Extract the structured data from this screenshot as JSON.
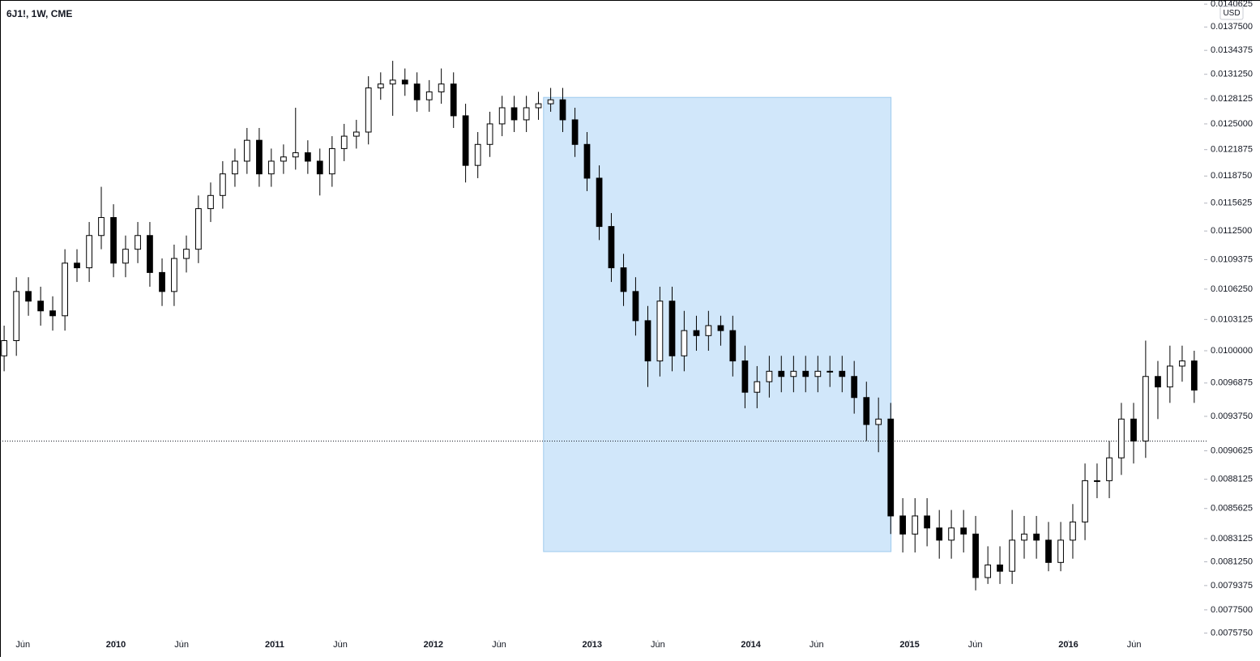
{
  "chart_data": {
    "type": "candlestick",
    "title": "6J1!, 1W, CME",
    "currency": "USD",
    "log_scale": true,
    "up_color": "#ffffff",
    "down_color": "#000000",
    "wick_color": "#000000",
    "highlight": {
      "x": [
        2012.694,
        2014.883
      ],
      "y": [
        0.008207,
        0.01283
      ],
      "color": "#d1e7fa",
      "border_color": "#9fcbee"
    },
    "price_line": 0.00915,
    "xlim": [
      2009.27,
      2016.85
    ],
    "ylim": [
      0.007524,
      0.01412
    ],
    "xticks": [
      {
        "value": 2009.414,
        "label": "Jun"
      },
      2010,
      {
        "value": 2010.414,
        "label": "Jun"
      },
      2011,
      {
        "value": 2011.414,
        "label": "Jun"
      },
      2012,
      {
        "value": 2012.414,
        "label": "Jun"
      },
      2013,
      {
        "value": 2013.414,
        "label": "Jun"
      },
      2014,
      {
        "value": 2014.414,
        "label": "Jun"
      },
      2015,
      {
        "value": 2015.414,
        "label": "Jun"
      },
      2016,
      {
        "value": 2016.414,
        "label": "Jun"
      }
    ],
    "yticks": [
      0.0140625,
      {
        "value": 0.01375,
        "label": "0.0137500"
      },
      0.0134375,
      {
        "value": 0.013125,
        "label": "0.0131250"
      },
      0.0128125,
      {
        "value": 0.0125,
        "label": "0.0125000"
      },
      0.0121875,
      {
        "value": 0.011875,
        "label": "0.0118750"
      },
      0.0115625,
      {
        "value": 0.01125,
        "label": "0.0112500"
      },
      0.0109375,
      {
        "value": 0.010625,
        "label": "0.0106250"
      },
      0.0103125,
      {
        "value": 0.01,
        "label": "0.0100000"
      },
      0.0096875,
      {
        "value": 0.009375,
        "label": "0.0093750"
      },
      0.0090625,
      0.0088125,
      0.0085625,
      0.0083125,
      {
        "value": 0.008125,
        "label": "0.0081250"
      },
      {
        "value": 0.0079375,
        "label": "0.0079375"
      },
      {
        "value": 0.00775,
        "label": "0.0077500"
      },
      {
        "value": 0.007575,
        "label": "0.0075750"
      }
    ],
    "x": [
      2009.296,
      2009.373,
      2009.449,
      2009.526,
      2009.602,
      2009.679,
      2009.755,
      2009.832,
      2009.908,
      2009.985,
      2010.061,
      2010.138,
      2010.214,
      2010.291,
      2010.367,
      2010.444,
      2010.52,
      2010.597,
      2010.673,
      2010.75,
      2010.826,
      2010.903,
      2010.979,
      2011.056,
      2011.132,
      2011.209,
      2011.285,
      2011.362,
      2011.438,
      2011.515,
      2011.591,
      2011.668,
      2011.744,
      2011.821,
      2011.897,
      2011.974,
      2012.05,
      2012.127,
      2012.203,
      2012.28,
      2012.356,
      2012.433,
      2012.509,
      2012.586,
      2012.662,
      2012.739,
      2012.815,
      2012.892,
      2012.968,
      2013.045,
      2013.121,
      2013.198,
      2013.274,
      2013.351,
      2013.427,
      2013.504,
      2013.58,
      2013.657,
      2013.733,
      2013.81,
      2013.886,
      2013.963,
      2014.039,
      2014.116,
      2014.192,
      2014.269,
      2014.345,
      2014.422,
      2014.498,
      2014.575,
      2014.651,
      2014.728,
      2014.804,
      2014.881,
      2014.957,
      2015.034,
      2015.11,
      2015.187,
      2015.263,
      2015.34,
      2015.416,
      2015.493,
      2015.569,
      2015.646,
      2015.722,
      2015.799,
      2015.875,
      2015.952,
      2016.028,
      2016.105,
      2016.181,
      2016.258,
      2016.334,
      2016.411,
      2016.487,
      2016.564,
      2016.64,
      2016.717,
      2016.793
    ],
    "open": [
      0.00995,
      0.0101,
      0.0106,
      0.0105,
      0.0104,
      0.01035,
      0.0109,
      0.01085,
      0.0112,
      0.0114,
      0.0109,
      0.01105,
      0.0112,
      0.0108,
      0.0106,
      0.01095,
      0.01105,
      0.0115,
      0.01165,
      0.0119,
      0.01205,
      0.0123,
      0.0119,
      0.01205,
      0.0121,
      0.01215,
      0.01205,
      0.0119,
      0.0122,
      0.01235,
      0.0124,
      0.01295,
      0.013,
      0.01305,
      0.013,
      0.0128,
      0.0129,
      0.013,
      0.0126,
      0.012,
      0.01225,
      0.0125,
      0.0127,
      0.01255,
      0.0127,
      0.01275,
      0.0128,
      0.01255,
      0.01225,
      0.01185,
      0.0113,
      0.01085,
      0.0106,
      0.0103,
      0.0099,
      0.0105,
      0.00995,
      0.0102,
      0.01015,
      0.01025,
      0.0102,
      0.0099,
      0.0096,
      0.0097,
      0.0098,
      0.00975,
      0.0098,
      0.00975,
      0.0098,
      0.0098,
      0.00975,
      0.00955,
      0.0093,
      0.00935,
      0.0085,
      0.00835,
      0.0085,
      0.0084,
      0.0083,
      0.0084,
      0.00835,
      0.008,
      0.0081,
      0.00805,
      0.0083,
      0.00835,
      0.0083,
      0.00812,
      0.0083,
      0.00845,
      0.0088,
      0.0088,
      0.009,
      0.00935,
      0.00915,
      0.00975,
      0.00965,
      0.00985,
      0.0099
    ],
    "high": [
      0.01025,
      0.01075,
      0.01075,
      0.01065,
      0.01055,
      0.01105,
      0.01105,
      0.01135,
      0.01175,
      0.01155,
      0.0112,
      0.01135,
      0.01135,
      0.01095,
      0.0111,
      0.0112,
      0.01165,
      0.0118,
      0.01205,
      0.0122,
      0.01245,
      0.01245,
      0.0122,
      0.01225,
      0.0127,
      0.0123,
      0.0122,
      0.01235,
      0.0125,
      0.01255,
      0.0131,
      0.01315,
      0.0133,
      0.0132,
      0.01315,
      0.01305,
      0.0132,
      0.01315,
      0.01275,
      0.0124,
      0.01265,
      0.01285,
      0.01285,
      0.01285,
      0.0129,
      0.01295,
      0.01295,
      0.0127,
      0.0124,
      0.012,
      0.01145,
      0.011,
      0.01075,
      0.01045,
      0.01065,
      0.01065,
      0.0104,
      0.01035,
      0.0104,
      0.01035,
      0.01035,
      0.01005,
      0.00985,
      0.00995,
      0.00995,
      0.00995,
      0.00995,
      0.00995,
      0.00995,
      0.00995,
      0.0099,
      0.0097,
      0.00955,
      0.0095,
      0.00865,
      0.00865,
      0.00865,
      0.00855,
      0.00855,
      0.00855,
      0.0085,
      0.00825,
      0.00825,
      0.00855,
      0.0085,
      0.0085,
      0.00845,
      0.00845,
      0.0086,
      0.00895,
      0.00895,
      0.00915,
      0.0095,
      0.0095,
      0.0101,
      0.0099,
      0.01005,
      0.01005,
      0.01
    ],
    "low": [
      0.0098,
      0.00995,
      0.01035,
      0.01025,
      0.0102,
      0.0102,
      0.0107,
      0.0107,
      0.01105,
      0.01075,
      0.01075,
      0.0109,
      0.01065,
      0.01045,
      0.01045,
      0.0108,
      0.0109,
      0.01135,
      0.0115,
      0.01175,
      0.0119,
      0.01175,
      0.01175,
      0.0119,
      0.01195,
      0.0119,
      0.01165,
      0.01175,
      0.01205,
      0.0122,
      0.01225,
      0.0128,
      0.0126,
      0.01285,
      0.01265,
      0.01265,
      0.01275,
      0.01245,
      0.0118,
      0.01185,
      0.0121,
      0.01235,
      0.0124,
      0.0124,
      0.01255,
      0.01265,
      0.0124,
      0.0121,
      0.0117,
      0.01115,
      0.0107,
      0.01045,
      0.01015,
      0.00965,
      0.00975,
      0.0098,
      0.0098,
      0.01,
      0.01,
      0.01005,
      0.00975,
      0.00945,
      0.00945,
      0.00955,
      0.0096,
      0.0096,
      0.0096,
      0.0096,
      0.00965,
      0.0096,
      0.0094,
      0.00915,
      0.00905,
      0.00835,
      0.0082,
      0.0082,
      0.00825,
      0.00815,
      0.00815,
      0.0082,
      0.0079,
      0.00795,
      0.00795,
      0.00795,
      0.00815,
      0.00815,
      0.00805,
      0.00805,
      0.00815,
      0.0083,
      0.00865,
      0.00865,
      0.00885,
      0.00895,
      0.009,
      0.00935,
      0.0095,
      0.0097,
      0.0095
    ],
    "close": [
      0.0101,
      0.0106,
      0.0105,
      0.0104,
      0.01035,
      0.0109,
      0.01085,
      0.0112,
      0.0114,
      0.0109,
      0.01105,
      0.0112,
      0.0108,
      0.0106,
      0.01095,
      0.01105,
      0.0115,
      0.01165,
      0.0119,
      0.01205,
      0.0123,
      0.0119,
      0.01205,
      0.0121,
      0.01215,
      0.01205,
      0.0119,
      0.0122,
      0.01235,
      0.0124,
      0.01295,
      0.013,
      0.01305,
      0.013,
      0.0128,
      0.0129,
      0.013,
      0.0126,
      0.012,
      0.01225,
      0.0125,
      0.0127,
      0.01255,
      0.0127,
      0.01275,
      0.0128,
      0.01255,
      0.01225,
      0.01185,
      0.0113,
      0.01085,
      0.0106,
      0.0103,
      0.0099,
      0.0105,
      0.00995,
      0.0102,
      0.01015,
      0.01025,
      0.0102,
      0.0099,
      0.0096,
      0.0097,
      0.0098,
      0.00975,
      0.0098,
      0.00975,
      0.0098,
      0.0098,
      0.00975,
      0.00955,
      0.0093,
      0.00935,
      0.0085,
      0.00835,
      0.0085,
      0.0084,
      0.0083,
      0.0084,
      0.00835,
      0.008,
      0.0081,
      0.00805,
      0.0083,
      0.00835,
      0.0083,
      0.00812,
      0.0083,
      0.00845,
      0.0088,
      0.0088,
      0.009,
      0.00935,
      0.00915,
      0.00975,
      0.00965,
      0.00985,
      0.0099,
      0.00962
    ]
  }
}
